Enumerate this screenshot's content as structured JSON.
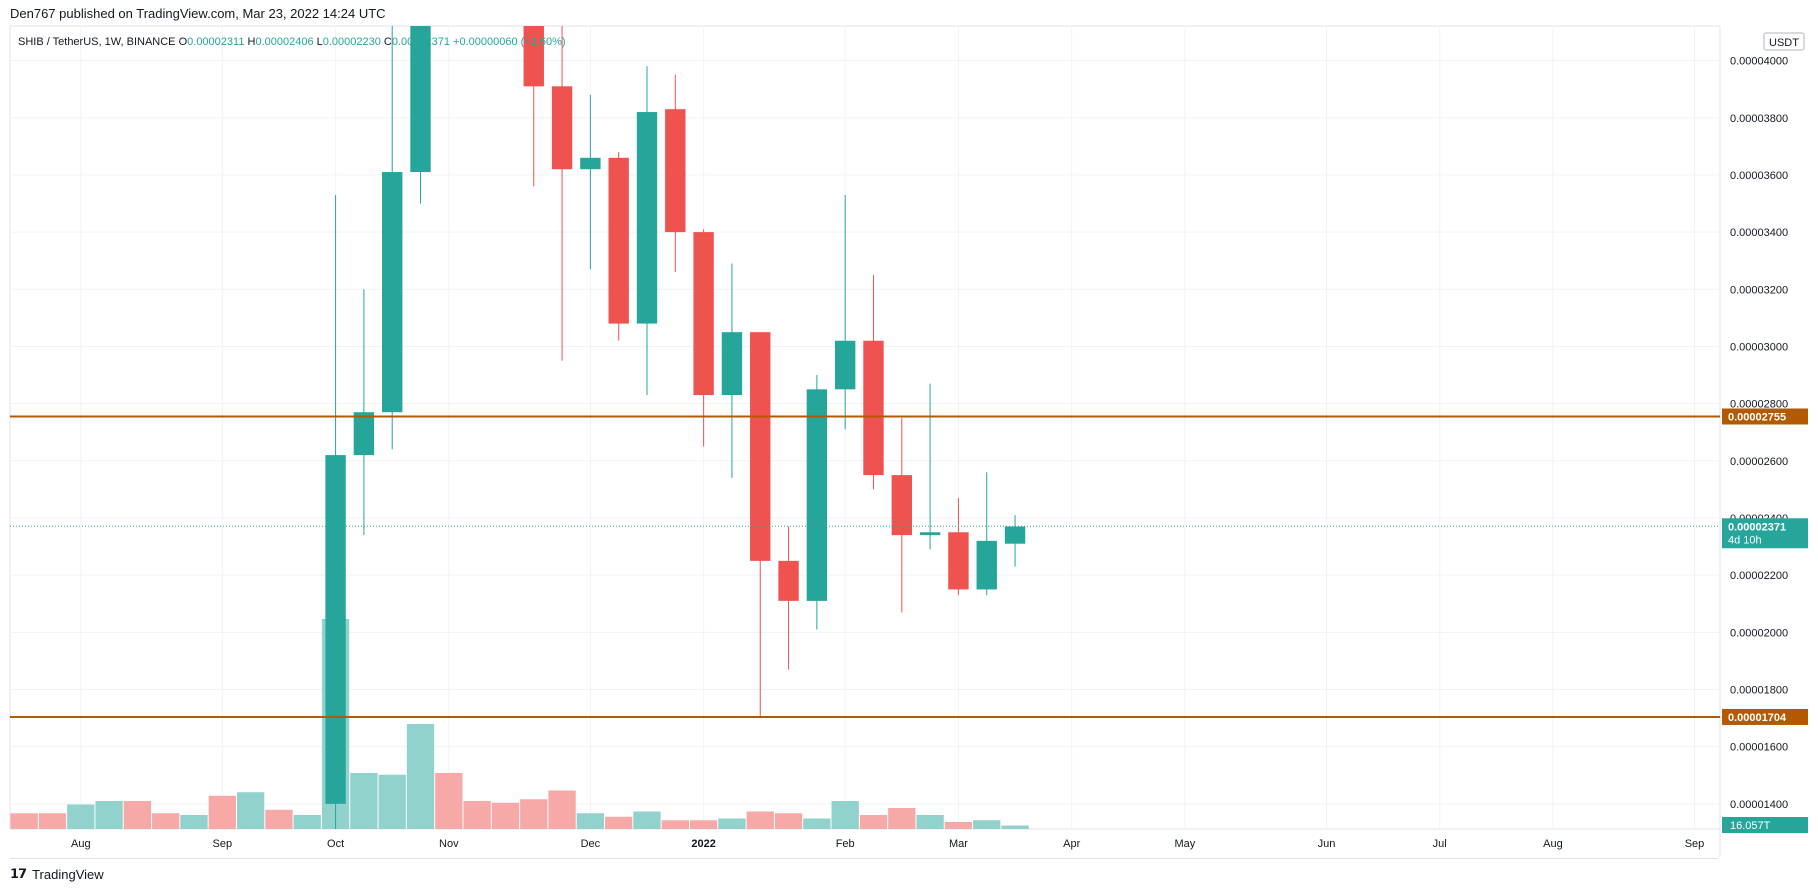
{
  "publisher_line": "Den767 published on TradingView.com, Mar 23, 2022 14:24 UTC",
  "footer_brand": "TradingView",
  "chart_data": {
    "type": "candlestick",
    "symbol_line": {
      "symbol": "SHIB / TetherUS, 1W, BINANCE",
      "open_label": "O",
      "open": "0.00002311",
      "high_label": "H",
      "high": "0.00002406",
      "low_label": "L",
      "low": "0.00002230",
      "close_label": "C",
      "close": "0.00002371",
      "change": "+0.00000060",
      "change_pct": "(+2.60%)"
    },
    "currency_badge": "USDT",
    "y_ticks": [
      "0.00004000",
      "0.00003800",
      "0.00003600",
      "0.00003400",
      "0.00003200",
      "0.00003000",
      "0.00002800",
      "0.00002600",
      "0.00002400",
      "0.00002200",
      "0.00002000",
      "0.00001800",
      "0.00001600",
      "0.00001400"
    ],
    "y_tick_values": [
      4e-05,
      3.8e-05,
      3.6e-05,
      3.4e-05,
      3.2e-05,
      3e-05,
      2.8e-05,
      2.6e-05,
      2.4e-05,
      2.2e-05,
      2e-05,
      1.8e-05,
      1.6e-05,
      1.4e-05
    ],
    "ylim": [
      1.312e-05,
      4.121e-05
    ],
    "x_ticks": [
      {
        "label": "Aug",
        "week": 2.5,
        "bold": false
      },
      {
        "label": "Sep",
        "week": 7.5,
        "bold": false
      },
      {
        "label": "Oct",
        "week": 11.5,
        "bold": false
      },
      {
        "label": "Nov",
        "week": 15.5,
        "bold": false
      },
      {
        "label": "Dec",
        "week": 20.5,
        "bold": false
      },
      {
        "label": "2022",
        "week": 24.5,
        "bold": true
      },
      {
        "label": "Feb",
        "week": 29.5,
        "bold": false
      },
      {
        "label": "Mar",
        "week": 33.5,
        "bold": false
      },
      {
        "label": "Apr",
        "week": 37.5,
        "bold": false
      },
      {
        "label": "May",
        "week": 41.5,
        "bold": false
      },
      {
        "label": "Jun",
        "week": 46.5,
        "bold": false
      },
      {
        "label": "Jul",
        "week": 50.5,
        "bold": false
      },
      {
        "label": "Aug",
        "week": 54.5,
        "bold": false
      },
      {
        "label": "Sep",
        "week": 59.5,
        "bold": false
      }
    ],
    "xlim": [
      0,
      60.4
    ],
    "horizontal_lines": [
      {
        "value": 2.755e-05,
        "label": "0.00002755",
        "color": "#b35900"
      },
      {
        "value": 1.704e-05,
        "label": "0.00001704",
        "color": "#b35900"
      }
    ],
    "last_price": {
      "value": 2.371e-05,
      "label": "0.00002371",
      "countdown": "4d 10h",
      "color": "#26a69a"
    },
    "volume_badge": "16.057T",
    "candles": [
      {
        "i": 11.5,
        "o": 1.4e-05,
        "h": 3.53e-05,
        "l": 1.3e-05,
        "c": 2.62e-05
      },
      {
        "i": 12.5,
        "o": 2.62e-05,
        "h": 3.2e-05,
        "l": 2.34e-05,
        "c": 2.77e-05
      },
      {
        "i": 13.5,
        "o": 2.77e-05,
        "h": 4.2e-05,
        "l": 2.64e-05,
        "c": 3.61e-05
      },
      {
        "i": 14.5,
        "o": 3.61e-05,
        "h": 4.2e-05,
        "l": 3.5e-05,
        "c": 4.2e-05
      },
      {
        "i": 18.5,
        "o": 4.2e-05,
        "h": 4.2e-05,
        "l": 3.56e-05,
        "c": 3.91e-05
      },
      {
        "i": 19.5,
        "o": 3.91e-05,
        "h": 4.2e-05,
        "l": 2.95e-05,
        "c": 3.62e-05
      },
      {
        "i": 20.5,
        "o": 3.62e-05,
        "h": 3.88e-05,
        "l": 3.27e-05,
        "c": 3.66e-05
      },
      {
        "i": 21.5,
        "o": 3.66e-05,
        "h": 3.68e-05,
        "l": 3.02e-05,
        "c": 3.08e-05
      },
      {
        "i": 22.5,
        "o": 3.08e-05,
        "h": 3.98e-05,
        "l": 2.83e-05,
        "c": 3.82e-05
      },
      {
        "i": 23.5,
        "o": 3.83e-05,
        "h": 3.95e-05,
        "l": 3.26e-05,
        "c": 3.4e-05
      },
      {
        "i": 24.5,
        "o": 3.4e-05,
        "h": 3.41e-05,
        "l": 2.65e-05,
        "c": 2.83e-05
      },
      {
        "i": 25.5,
        "o": 2.83e-05,
        "h": 3.29e-05,
        "l": 2.54e-05,
        "c": 3.05e-05
      },
      {
        "i": 26.5,
        "o": 3.05e-05,
        "h": 3.05e-05,
        "l": 1.7e-05,
        "c": 2.25e-05
      },
      {
        "i": 27.5,
        "o": 2.25e-05,
        "h": 2.37e-05,
        "l": 1.87e-05,
        "c": 2.11e-05
      },
      {
        "i": 28.5,
        "o": 2.11e-05,
        "h": 2.9e-05,
        "l": 2.01e-05,
        "c": 2.85e-05
      },
      {
        "i": 29.5,
        "o": 2.85e-05,
        "h": 3.53e-05,
        "l": 2.71e-05,
        "c": 3.02e-05
      },
      {
        "i": 30.5,
        "o": 3.02e-05,
        "h": 3.25e-05,
        "l": 2.5e-05,
        "c": 2.55e-05
      },
      {
        "i": 31.5,
        "o": 2.55e-05,
        "h": 2.75e-05,
        "l": 2.07e-05,
        "c": 2.34e-05
      },
      {
        "i": 32.5,
        "o": 2.34e-05,
        "h": 2.87e-05,
        "l": 2.29e-05,
        "c": 2.35e-05
      },
      {
        "i": 33.5,
        "o": 2.35e-05,
        "h": 2.47e-05,
        "l": 2.13e-05,
        "c": 2.15e-05
      },
      {
        "i": 34.5,
        "o": 2.15e-05,
        "h": 2.56e-05,
        "l": 2.13e-05,
        "c": 2.32e-05
      },
      {
        "i": 35.5,
        "o": 2.31e-05,
        "h": 2.41e-05,
        "l": 2.23e-05,
        "c": 2.37e-05
      }
    ],
    "volumes": [
      {
        "i": 0.5,
        "v": 0.9,
        "up": false
      },
      {
        "i": 1.5,
        "v": 0.9,
        "up": false
      },
      {
        "i": 2.5,
        "v": 1.4,
        "up": true
      },
      {
        "i": 3.5,
        "v": 1.6,
        "up": true
      },
      {
        "i": 4.5,
        "v": 1.6,
        "up": false
      },
      {
        "i": 5.5,
        "v": 0.9,
        "up": false
      },
      {
        "i": 6.5,
        "v": 0.8,
        "up": true
      },
      {
        "i": 7.5,
        "v": 1.9,
        "up": false
      },
      {
        "i": 8.5,
        "v": 2.1,
        "up": true
      },
      {
        "i": 9.5,
        "v": 1.1,
        "up": false
      },
      {
        "i": 10.5,
        "v": 0.8,
        "up": true
      },
      {
        "i": 11.5,
        "v": 12.0,
        "up": true
      },
      {
        "i": 12.5,
        "v": 3.2,
        "up": true
      },
      {
        "i": 13.5,
        "v": 3.1,
        "up": true
      },
      {
        "i": 14.5,
        "v": 6.0,
        "up": true
      },
      {
        "i": 15.5,
        "v": 3.2,
        "up": false
      },
      {
        "i": 16.5,
        "v": 1.6,
        "up": false
      },
      {
        "i": 17.5,
        "v": 1.5,
        "up": false
      },
      {
        "i": 18.5,
        "v": 1.7,
        "up": false
      },
      {
        "i": 19.5,
        "v": 2.2,
        "up": false
      },
      {
        "i": 20.5,
        "v": 0.9,
        "up": true
      },
      {
        "i": 21.5,
        "v": 0.7,
        "up": false
      },
      {
        "i": 22.5,
        "v": 1.0,
        "up": true
      },
      {
        "i": 23.5,
        "v": 0.5,
        "up": false
      },
      {
        "i": 24.5,
        "v": 0.5,
        "up": false
      },
      {
        "i": 25.5,
        "v": 0.6,
        "up": true
      },
      {
        "i": 26.5,
        "v": 1.0,
        "up": false
      },
      {
        "i": 27.5,
        "v": 0.9,
        "up": false
      },
      {
        "i": 28.5,
        "v": 0.6,
        "up": true
      },
      {
        "i": 29.5,
        "v": 1.6,
        "up": true
      },
      {
        "i": 30.5,
        "v": 0.8,
        "up": false
      },
      {
        "i": 31.5,
        "v": 1.2,
        "up": false
      },
      {
        "i": 32.5,
        "v": 0.8,
        "up": true
      },
      {
        "i": 33.5,
        "v": 0.4,
        "up": false
      },
      {
        "i": 34.5,
        "v": 0.5,
        "up": true
      },
      {
        "i": 35.5,
        "v": 0.2,
        "up": true
      }
    ],
    "volume_max": 12.0,
    "colors": {
      "up": "#26a69a",
      "down": "#ef5350",
      "up_vol": "#92d2cc",
      "down_vol": "#f7a9a7",
      "grid": "#f0f3fa",
      "axis_text": "#131722",
      "level": "#b35900"
    }
  }
}
